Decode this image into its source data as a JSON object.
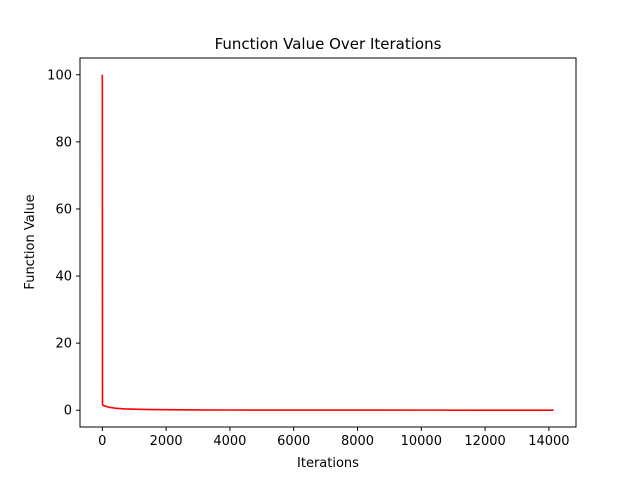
{
  "chart_data": {
    "type": "line",
    "title": "Function Value Over Iterations",
    "xlabel": "Iterations",
    "ylabel": "Function Value",
    "xlim": [
      -700,
      14850
    ],
    "ylim": [
      -5,
      105
    ],
    "x_ticks": [
      0,
      2000,
      4000,
      6000,
      8000,
      10000,
      12000,
      14000
    ],
    "x_tick_labels": [
      "0",
      "2000",
      "4000",
      "6000",
      "8000",
      "10000",
      "12000",
      "14000"
    ],
    "y_ticks": [
      0,
      20,
      40,
      60,
      80,
      100
    ],
    "y_tick_labels": [
      "0",
      "20",
      "40",
      "60",
      "80",
      "100"
    ],
    "grid": false,
    "series": [
      {
        "color": "#ff0000",
        "x": [
          0,
          5,
          20,
          100,
          200,
          400,
          700,
          1000,
          1500,
          2000,
          3000,
          4000,
          6000,
          8000,
          10000,
          12000,
          14150
        ],
        "y": [
          100,
          1.8,
          1.5,
          1.2,
          0.9,
          0.6,
          0.4,
          0.3,
          0.2,
          0.15,
          0.1,
          0.07,
          0.05,
          0.04,
          0.03,
          0.02,
          0.01
        ]
      }
    ]
  }
}
